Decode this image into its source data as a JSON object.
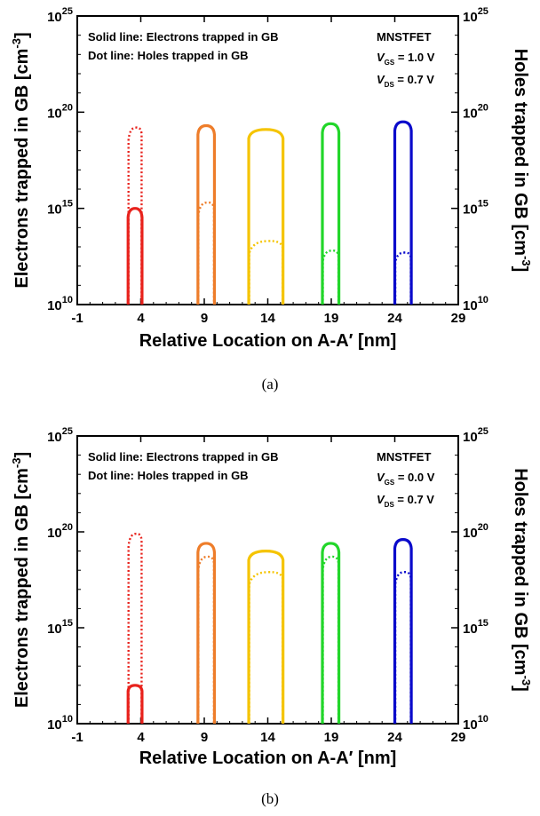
{
  "chart_data": [
    {
      "type": "line",
      "panel_label": "(a)",
      "xlabel": "Relative Location on A-A′ [nm]",
      "ylabel_left": "Electrons trapped in GB [cm",
      "ylabel_right": "Holes trapped in GB [cm",
      "ylabel_exponent": "-3",
      "xticks": [
        "-1",
        "4",
        "9",
        "14",
        "19",
        "24",
        "29"
      ],
      "yticks": [
        {
          "base": "10",
          "exp": "10"
        },
        {
          "base": "10",
          "exp": "15"
        },
        {
          "base": "10",
          "exp": "20"
        },
        {
          "base": "10",
          "exp": "25"
        }
      ],
      "xlim": [
        -1,
        29
      ],
      "ylim_log10": [
        10,
        25
      ],
      "annotations": {
        "line1": "Solid line: Electrons trapped in GB",
        "line2": "Dot line: Holes trapped in GB",
        "device": "MNSTFET",
        "vgs_label": "V",
        "vgs_sub": "GS",
        "vgs_value": " = 1.0 V",
        "vds_label": "V",
        "vds_sub": "DS",
        "vds_value": " = 0.7 V"
      },
      "series": [
        {
          "color": "#e8221c",
          "x_start": 3.0,
          "x_end": 4.1,
          "electrons_log10_peak": 15.0,
          "holes_log10_peak": 19.2
        },
        {
          "color": "#ee7d2a",
          "x_start": 8.5,
          "x_end": 9.8,
          "electrons_log10_peak": 19.3,
          "holes_log10_peak": 15.3
        },
        {
          "color": "#f5c400",
          "x_start": 12.5,
          "x_end": 15.2,
          "electrons_log10_peak": 19.1,
          "holes_log10_peak": 13.3
        },
        {
          "color": "#22d62a",
          "x_start": 18.3,
          "x_end": 19.6,
          "electrons_log10_peak": 19.4,
          "holes_log10_peak": 12.8
        },
        {
          "color": "#0a0acb",
          "x_start": 24.0,
          "x_end": 25.3,
          "electrons_log10_peak": 19.5,
          "holes_log10_peak": 12.7
        }
      ]
    },
    {
      "type": "line",
      "panel_label": "(b)",
      "xlabel": "Relative Location on A-A′ [nm]",
      "ylabel_left": "Electrons trapped in GB [cm",
      "ylabel_right": "Holes trapped in GB [cm",
      "ylabel_exponent": "-3",
      "xticks": [
        "-1",
        "4",
        "9",
        "14",
        "19",
        "24",
        "29"
      ],
      "yticks": [
        {
          "base": "10",
          "exp": "10"
        },
        {
          "base": "10",
          "exp": "15"
        },
        {
          "base": "10",
          "exp": "20"
        },
        {
          "base": "10",
          "exp": "25"
        }
      ],
      "xlim": [
        -1,
        29
      ],
      "ylim_log10": [
        10,
        25
      ],
      "annotations": {
        "line1": "Solid line: Electrons trapped in GB",
        "line2": "Dot line: Holes trapped in GB",
        "device": "MNSTFET",
        "vgs_label": "V",
        "vgs_sub": "GS",
        "vgs_value": " = 0.0 V",
        "vds_label": "V",
        "vds_sub": "DS",
        "vds_value": " = 0.7 V"
      },
      "series": [
        {
          "color": "#e8221c",
          "x_start": 3.0,
          "x_end": 4.1,
          "electrons_log10_peak": 12.0,
          "holes_log10_peak": 19.9
        },
        {
          "color": "#ee7d2a",
          "x_start": 8.5,
          "x_end": 9.8,
          "electrons_log10_peak": 19.4,
          "holes_log10_peak": 18.7
        },
        {
          "color": "#f5c400",
          "x_start": 12.5,
          "x_end": 15.2,
          "electrons_log10_peak": 19.0,
          "holes_log10_peak": 17.9
        },
        {
          "color": "#22d62a",
          "x_start": 18.3,
          "x_end": 19.6,
          "electrons_log10_peak": 19.4,
          "holes_log10_peak": 18.7
        },
        {
          "color": "#0a0acb",
          "x_start": 24.0,
          "x_end": 25.3,
          "electrons_log10_peak": 19.6,
          "holes_log10_peak": 17.9
        }
      ]
    }
  ]
}
